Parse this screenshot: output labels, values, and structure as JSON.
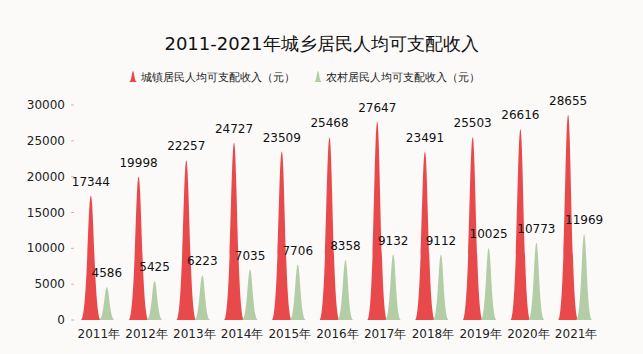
{
  "chart_data": {
    "type": "bar",
    "title": "2011-2021年城乡居民人均可支配收入",
    "categories": [
      "2011年",
      "2012年",
      "2013年",
      "2014年",
      "2015年",
      "2016年",
      "2017年",
      "2018年",
      "2019年",
      "2020年",
      "2021年"
    ],
    "series": [
      {
        "name": "城镇居民人均可支配收入（元）",
        "color": "#e84a4c",
        "values": [
          17344,
          19998,
          22257,
          24727,
          23509,
          25468,
          27647,
          23491,
          25503,
          26616,
          28655
        ]
      },
      {
        "name": "农村居民人均可支配收入（元）",
        "color": "#b3cda6",
        "values": [
          4586,
          5425,
          6223,
          7035,
          7706,
          8358,
          9132,
          9112,
          10025,
          10773,
          11969
        ]
      }
    ],
    "ylim": [
      0,
      30000
    ],
    "yticks": [
      0,
      5000,
      10000,
      15000,
      20000,
      25000,
      30000
    ],
    "grid": false,
    "legend": "top",
    "data_labels": true
  }
}
